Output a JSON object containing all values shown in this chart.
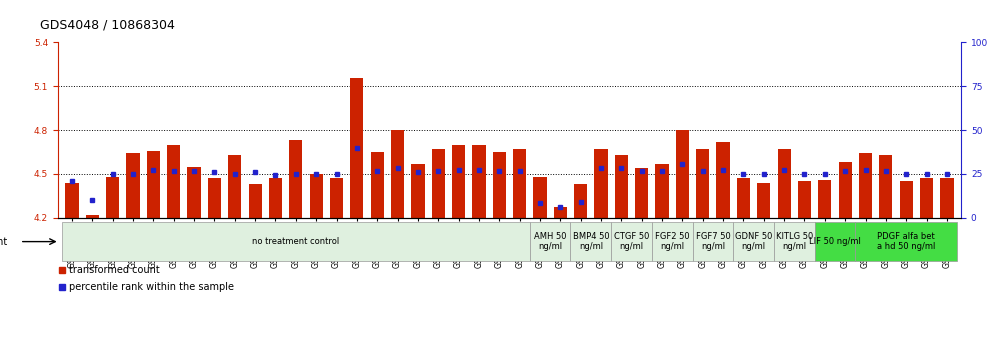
{
  "title": "GDS4048 / 10868304",
  "ylim_left": [
    4.2,
    5.4
  ],
  "ylim_right": [
    0,
    100
  ],
  "yticks_left": [
    4.2,
    4.5,
    4.8,
    5.1,
    5.4
  ],
  "yticks_right": [
    0,
    25,
    50,
    75,
    100
  ],
  "hlines": [
    4.5,
    4.8,
    5.1
  ],
  "bar_color": "#cc2200",
  "dot_color": "#2222cc",
  "gsm_labels": [
    "GSM509254",
    "GSM509255",
    "GSM509256",
    "GSM510028",
    "GSM510029",
    "GSM510030",
    "GSM510031",
    "GSM510032",
    "GSM510033",
    "GSM510034",
    "GSM510035",
    "GSM510036",
    "GSM510037",
    "GSM510038",
    "GSM510039",
    "GSM510040",
    "GSM510041",
    "GSM510042",
    "GSM510043",
    "GSM510044",
    "GSM510045",
    "GSM510046",
    "GSM510047",
    "GSM509257",
    "GSM509258",
    "GSM509259",
    "GSM510063",
    "GSM510064",
    "GSM510065",
    "GSM510051",
    "GSM510052",
    "GSM510053",
    "GSM510048",
    "GSM510049",
    "GSM510050",
    "GSM510054",
    "GSM510055",
    "GSM510056",
    "GSM510057",
    "GSM510058",
    "GSM510059",
    "GSM510060",
    "GSM510061",
    "GSM510062"
  ],
  "bar_heights": [
    4.44,
    4.22,
    4.48,
    4.64,
    4.66,
    4.7,
    4.55,
    4.47,
    4.63,
    4.43,
    4.47,
    4.73,
    4.5,
    4.47,
    5.16,
    4.65,
    4.8,
    4.57,
    4.67,
    4.7,
    4.7,
    4.65,
    4.67,
    4.48,
    4.27,
    4.43,
    4.67,
    4.63,
    4.54,
    4.57,
    4.8,
    4.67,
    4.72,
    4.47,
    4.44,
    4.67,
    4.45,
    4.46,
    4.58,
    4.64,
    4.63,
    4.45,
    4.47,
    4.47
  ],
  "dot_values": [
    4.45,
    4.32,
    4.5,
    4.5,
    4.53,
    4.52,
    4.52,
    4.51,
    4.5,
    4.51,
    4.49,
    4.5,
    4.5,
    4.5,
    4.68,
    4.52,
    4.54,
    4.51,
    4.52,
    4.53,
    4.53,
    4.52,
    4.52,
    4.3,
    4.27,
    4.31,
    4.54,
    4.54,
    4.52,
    4.52,
    4.57,
    4.52,
    4.53,
    4.5,
    4.5,
    4.53,
    4.5,
    4.5,
    4.52,
    4.53,
    4.52,
    4.5,
    4.5,
    4.5
  ],
  "agent_groups": [
    {
      "label": "no treatment control",
      "start": 0,
      "end": 23,
      "color": "#dff0df"
    },
    {
      "label": "AMH 50\nng/ml",
      "start": 23,
      "end": 25,
      "color": "#dff0df"
    },
    {
      "label": "BMP4 50\nng/ml",
      "start": 25,
      "end": 27,
      "color": "#dff0df"
    },
    {
      "label": "CTGF 50\nng/ml",
      "start": 27,
      "end": 29,
      "color": "#dff0df"
    },
    {
      "label": "FGF2 50\nng/ml",
      "start": 29,
      "end": 31,
      "color": "#dff0df"
    },
    {
      "label": "FGF7 50\nng/ml",
      "start": 31,
      "end": 33,
      "color": "#dff0df"
    },
    {
      "label": "GDNF 50\nng/ml",
      "start": 33,
      "end": 35,
      "color": "#dff0df"
    },
    {
      "label": "KITLG 50\nng/ml",
      "start": 35,
      "end": 37,
      "color": "#dff0df"
    },
    {
      "label": "LIF 50 ng/ml",
      "start": 37,
      "end": 39,
      "color": "#44dd44"
    },
    {
      "label": "PDGF alfa bet\na hd 50 ng/ml",
      "start": 39,
      "end": 44,
      "color": "#44dd44"
    }
  ],
  "legend_items": [
    {
      "label": "transformed count",
      "color": "#cc2200"
    },
    {
      "label": "percentile rank within the sample",
      "color": "#2222cc"
    }
  ],
  "bar_bottom": 4.2,
  "title_fontsize": 9,
  "tick_fontsize": 6.5,
  "agent_fontsize": 6.5
}
